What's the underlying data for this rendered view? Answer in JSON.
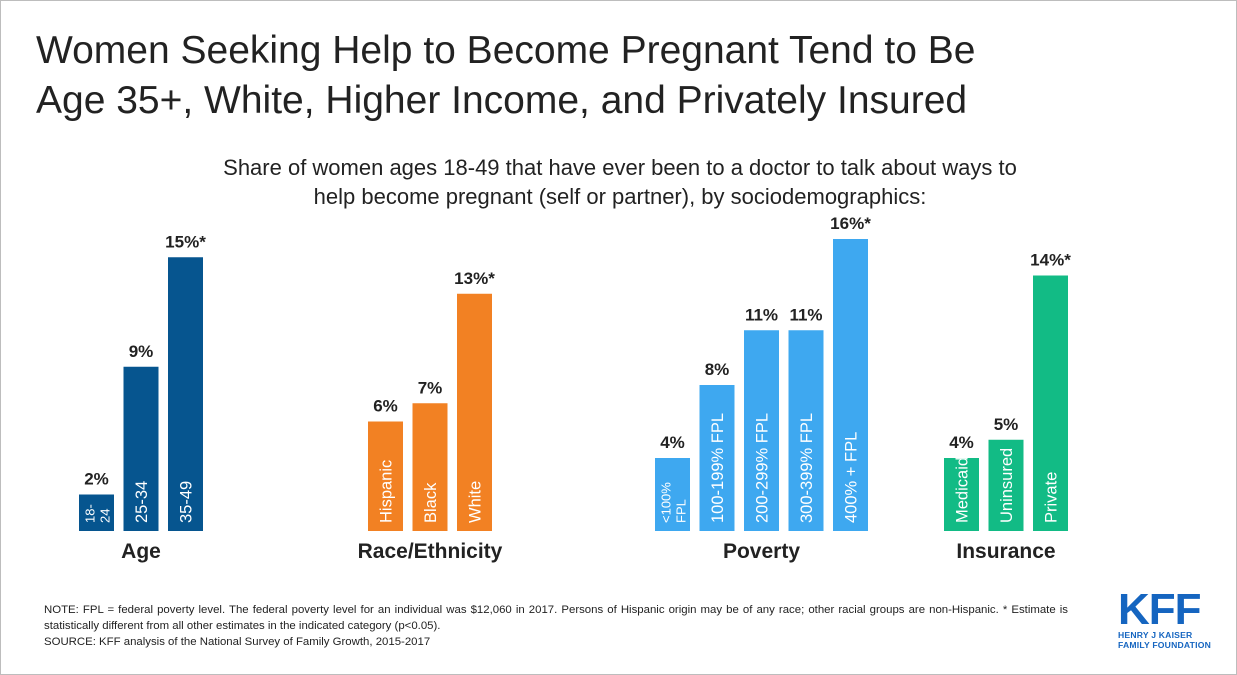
{
  "title_line1": "Women Seeking Help to Become Pregnant Tend to Be",
  "title_line2": "Age 35+, White, Higher Income, and Privately Insured",
  "subtitle_line1": "Share of women ages 18-49 that have ever been to a doctor to talk about ways to",
  "subtitle_line2": "help become pregnant (self or partner), by sociodemographics:",
  "note_line1": "NOTE: FPL = federal poverty level. The federal poverty level for an individual was $12,060 in 2017. Persons of Hispanic origin may be of any race; other racial groups are non-Hispanic. * Estimate is statistically different from all other estimates in the indicated category (p<0.05).",
  "source_line": "SOURCE: KFF analysis of the National Survey of Family Growth, 2015-2017",
  "logo": {
    "mark": "KFF",
    "line1": "HENRY J KAISER",
    "line2": "FAMILY FOUNDATION"
  },
  "chart_data": {
    "type": "bar",
    "unit": "%",
    "ylim": [
      0,
      16
    ],
    "grid": false,
    "groups": [
      {
        "name": "Age",
        "color": "#06558f",
        "bars": [
          {
            "category": "18-24",
            "value": 2,
            "label": "2%"
          },
          {
            "category": "25-34",
            "value": 9,
            "label": "9%"
          },
          {
            "category": "35-49",
            "value": 15,
            "label": "15%*"
          }
        ]
      },
      {
        "name": "Race/Ethnicity",
        "color": "#f28123",
        "bars": [
          {
            "category": "Hispanic",
            "value": 6,
            "label": "6%"
          },
          {
            "category": "Black",
            "value": 7,
            "label": "7%"
          },
          {
            "category": "White",
            "value": 13,
            "label": "13%*"
          }
        ]
      },
      {
        "name": "Poverty",
        "color": "#3ea8f0",
        "bars": [
          {
            "category": "<100% FPL",
            "value": 4,
            "label": "4%"
          },
          {
            "category": "100-199% FPL",
            "value": 8,
            "label": "8%"
          },
          {
            "category": "200-299% FPL",
            "value": 11,
            "label": "11%"
          },
          {
            "category": "300-399% FPL",
            "value": 11,
            "label": "11%"
          },
          {
            "category": "400% + FPL",
            "value": 16,
            "label": "16%*"
          }
        ]
      },
      {
        "name": "Insurance",
        "color": "#12bb85",
        "bars": [
          {
            "category": "Medicaid",
            "value": 4,
            "label": "4%"
          },
          {
            "category": "Uninsured",
            "value": 5,
            "label": "5%"
          },
          {
            "category": "Private",
            "value": 14,
            "label": "14%*"
          }
        ]
      }
    ]
  }
}
